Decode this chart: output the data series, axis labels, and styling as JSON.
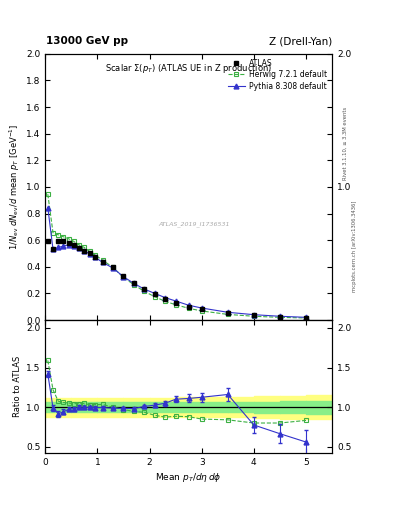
{
  "title_top_left": "13000 GeV pp",
  "title_top_right": "Z (Drell-Yan)",
  "main_title": "Scalar Σ(p_T) (ATLAS UE in Z production)",
  "ylabel_main": "1/N_{ev} dN_{ev}/d mean p_T [GeV^{-1}]",
  "ylabel_ratio": "Ratio to ATLAS",
  "xlabel": "Mean p_T/dη dϕ",
  "right_label_top": "Rivet 3.1.10, ≥ 3.3M events",
  "right_label_bottom": "mcplots.cern.ch [arXiv:1306.3436]",
  "watermark": "ATLAS_2019_I1736531",
  "atlas_x": [
    0.05,
    0.15,
    0.25,
    0.35,
    0.45,
    0.55,
    0.65,
    0.75,
    0.85,
    0.95,
    1.1,
    1.3,
    1.5,
    1.7,
    1.9,
    2.1,
    2.3,
    2.5,
    2.75,
    3.0,
    3.5,
    4.0,
    4.5,
    5.0
  ],
  "atlas_y": [
    0.595,
    0.535,
    0.595,
    0.59,
    0.58,
    0.565,
    0.54,
    0.52,
    0.5,
    0.475,
    0.435,
    0.395,
    0.33,
    0.28,
    0.23,
    0.195,
    0.16,
    0.13,
    0.1,
    0.08,
    0.05,
    0.035,
    0.025,
    0.018
  ],
  "atlas_yerr": [
    0.01,
    0.01,
    0.01,
    0.01,
    0.01,
    0.008,
    0.008,
    0.007,
    0.007,
    0.007,
    0.006,
    0.005,
    0.005,
    0.004,
    0.004,
    0.003,
    0.003,
    0.003,
    0.002,
    0.002,
    0.002,
    0.002,
    0.002,
    0.001
  ],
  "herwig_x": [
    0.05,
    0.15,
    0.25,
    0.35,
    0.45,
    0.55,
    0.65,
    0.75,
    0.85,
    0.95,
    1.1,
    1.3,
    1.5,
    1.7,
    1.9,
    2.1,
    2.3,
    2.5,
    2.75,
    3.0,
    3.5,
    4.0,
    4.5,
    5.0
  ],
  "herwig_y": [
    0.945,
    0.655,
    0.64,
    0.625,
    0.61,
    0.59,
    0.565,
    0.545,
    0.515,
    0.49,
    0.45,
    0.395,
    0.32,
    0.265,
    0.215,
    0.175,
    0.14,
    0.115,
    0.088,
    0.068,
    0.042,
    0.028,
    0.02,
    0.015
  ],
  "pythia_x": [
    0.05,
    0.15,
    0.25,
    0.35,
    0.45,
    0.55,
    0.65,
    0.75,
    0.85,
    0.95,
    1.1,
    1.3,
    1.5,
    1.7,
    1.9,
    2.1,
    2.3,
    2.5,
    2.75,
    3.0,
    3.5,
    4.0,
    4.5,
    5.0
  ],
  "pythia_y": [
    0.845,
    0.53,
    0.545,
    0.555,
    0.565,
    0.555,
    0.54,
    0.52,
    0.498,
    0.473,
    0.433,
    0.39,
    0.325,
    0.275,
    0.232,
    0.2,
    0.168,
    0.143,
    0.111,
    0.09,
    0.058,
    0.04,
    0.028,
    0.02
  ],
  "ratio_herwig_x": [
    0.05,
    0.15,
    0.25,
    0.35,
    0.45,
    0.55,
    0.65,
    0.75,
    0.85,
    0.95,
    1.1,
    1.3,
    1.5,
    1.7,
    1.9,
    2.1,
    2.3,
    2.5,
    2.75,
    3.0,
    3.5,
    4.0,
    4.5,
    5.0
  ],
  "ratio_herwig_y": [
    1.59,
    1.22,
    1.075,
    1.06,
    1.052,
    1.044,
    1.046,
    1.048,
    1.03,
    1.032,
    1.034,
    1.0,
    0.97,
    0.946,
    0.935,
    0.897,
    0.875,
    0.885,
    0.88,
    0.85,
    0.84,
    0.8,
    0.8,
    0.833
  ],
  "ratio_pythia_x": [
    0.05,
    0.15,
    0.25,
    0.35,
    0.45,
    0.55,
    0.65,
    0.75,
    0.85,
    0.95,
    1.1,
    1.3,
    1.5,
    1.7,
    1.9,
    2.1,
    2.3,
    2.5,
    2.75,
    3.0,
    3.5,
    4.0,
    4.5,
    5.0
  ],
  "ratio_pythia_y": [
    1.42,
    0.99,
    0.916,
    0.941,
    0.974,
    0.982,
    1.0,
    1.0,
    0.996,
    0.995,
    0.995,
    0.987,
    0.985,
    0.982,
    1.009,
    1.026,
    1.05,
    1.1,
    1.11,
    1.125,
    1.16,
    0.775,
    0.665,
    0.56
  ],
  "ratio_pythia_yerr": [
    0.04,
    0.04,
    0.035,
    0.03,
    0.028,
    0.025,
    0.022,
    0.02,
    0.02,
    0.018,
    0.016,
    0.015,
    0.015,
    0.018,
    0.02,
    0.025,
    0.03,
    0.04,
    0.05,
    0.06,
    0.08,
    0.1,
    0.12,
    0.15
  ],
  "band_x_edges": [
    0.0,
    0.5,
    1.0,
    1.5,
    2.0,
    2.5,
    3.0,
    3.5,
    4.0,
    4.5,
    5.0,
    5.5
  ],
  "band_yellow_low": [
    0.88,
    0.88,
    0.88,
    0.88,
    0.88,
    0.875,
    0.875,
    0.87,
    0.865,
    0.855,
    0.845,
    0.835
  ],
  "band_yellow_high": [
    1.12,
    1.12,
    1.12,
    1.12,
    1.12,
    1.125,
    1.125,
    1.13,
    1.135,
    1.145,
    1.155,
    1.165
  ],
  "band_green_low": [
    0.94,
    0.94,
    0.94,
    0.94,
    0.94,
    0.938,
    0.936,
    0.934,
    0.93,
    0.924,
    0.918,
    0.912
  ],
  "band_green_high": [
    1.06,
    1.06,
    1.06,
    1.06,
    1.06,
    1.062,
    1.064,
    1.066,
    1.07,
    1.076,
    1.082,
    1.088
  ],
  "atlas_color": "#000000",
  "herwig_color": "#3cb043",
  "pythia_color": "#3333cc",
  "band_yellow_color": "#ffff80",
  "band_green_color": "#88ee88",
  "main_ylim": [
    0.0,
    2.0
  ],
  "main_yticks": [
    0.0,
    0.2,
    0.4,
    0.6,
    0.8,
    1.0,
    1.2,
    1.4,
    1.6,
    1.8,
    2.0
  ],
  "ratio_ylim": [
    0.42,
    2.1
  ],
  "ratio_yticks": [
    0.5,
    1.0,
    1.5,
    2.0
  ],
  "xlim": [
    0.0,
    5.5
  ],
  "xticks": [
    0,
    1,
    2,
    3,
    4,
    5
  ]
}
